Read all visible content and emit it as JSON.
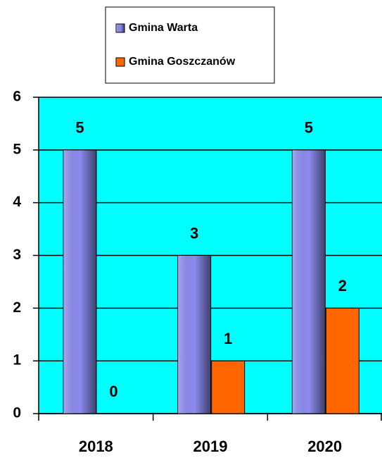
{
  "chart_data": {
    "type": "bar",
    "categories": [
      "2018",
      "2019",
      "2020"
    ],
    "series": [
      {
        "name": "Gmina Warta",
        "color": "#8c8cf0",
        "values": [
          5,
          3,
          5
        ]
      },
      {
        "name": "Gmina Goszczanów",
        "color": "#ff6600",
        "values": [
          0,
          1,
          2
        ]
      }
    ],
    "ylim": [
      0,
      6
    ],
    "yticks": [
      0,
      1,
      2,
      3,
      4,
      5,
      6
    ],
    "grid": true,
    "background": "#00ffff",
    "legend": "top"
  }
}
